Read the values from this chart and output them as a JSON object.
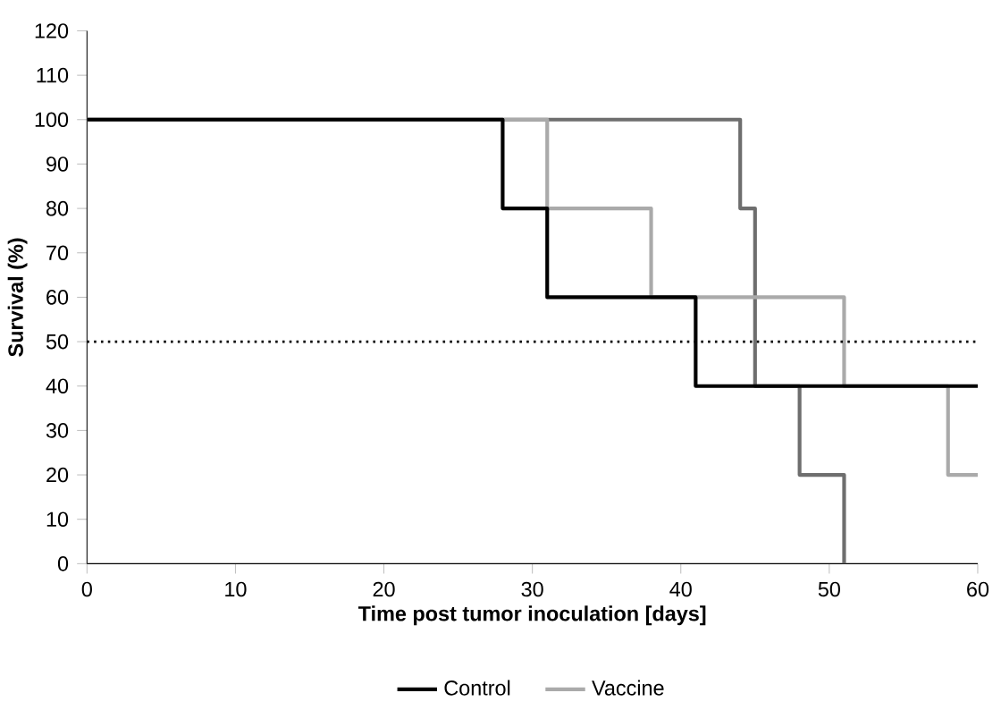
{
  "chart_data": {
    "type": "step",
    "xlabel": "Time post tumor inoculation [days]",
    "ylabel": "Survival (%)",
    "series": [
      {
        "name": "Control",
        "color": "#000000",
        "x": [
          0,
          28,
          31,
          41,
          60
        ],
        "values": [
          100,
          80,
          60,
          40,
          40
        ]
      },
      {
        "name": "Vaccine",
        "color": "#aaaaaa",
        "x": [
          0,
          31,
          38,
          51,
          58,
          60
        ],
        "values": [
          100,
          80,
          60,
          40,
          20,
          20
        ]
      },
      {
        "color": "#6e6e6e",
        "x": [
          0,
          44,
          45,
          48,
          51
        ],
        "values": [
          100,
          80,
          40,
          20,
          0
        ]
      }
    ],
    "xlim": [
      0,
      60
    ],
    "ylim": [
      0,
      120
    ],
    "xticks": [
      0,
      10,
      20,
      30,
      40,
      50,
      60
    ],
    "yticks": [
      0,
      10,
      20,
      30,
      40,
      50,
      60,
      70,
      80,
      90,
      100,
      110,
      120
    ],
    "ref_lines": [
      {
        "axis": "y",
        "value": 50,
        "color": "#000000",
        "line_style": "dotted"
      }
    ],
    "grid": false,
    "legend": "bottom"
  }
}
